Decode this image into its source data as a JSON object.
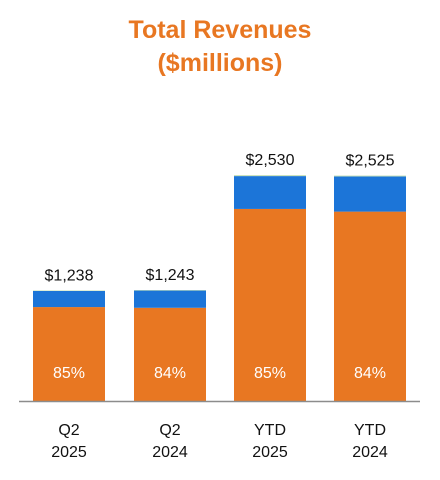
{
  "chart_data": {
    "type": "bar",
    "stacked": true,
    "title_lines": [
      "Total Revenues",
      "($millions)"
    ],
    "categories": [
      [
        "Q2",
        "2025"
      ],
      [
        "Q2",
        "2024"
      ],
      [
        "YTD",
        "2025"
      ],
      [
        "YTD",
        "2024"
      ]
    ],
    "totals": [
      1238,
      1243,
      2530,
      2525
    ],
    "total_labels": [
      "$1,238",
      "$1,243",
      "$2,530",
      "$2,525"
    ],
    "percent_labels": [
      "85%",
      "84%",
      "85%",
      "84%"
    ],
    "series": [
      {
        "color": "#E87722",
        "values": [
          1052,
          1044,
          2151,
          2121
        ]
      },
      {
        "color": "#1C75D8",
        "values": [
          180,
          193,
          368,
          394
        ]
      },
      {
        "color": "#C5E0B4",
        "values": [
          6,
          6,
          11,
          10
        ]
      }
    ],
    "ylim": [
      0,
      2800
    ],
    "grid": false,
    "legend": "none"
  }
}
